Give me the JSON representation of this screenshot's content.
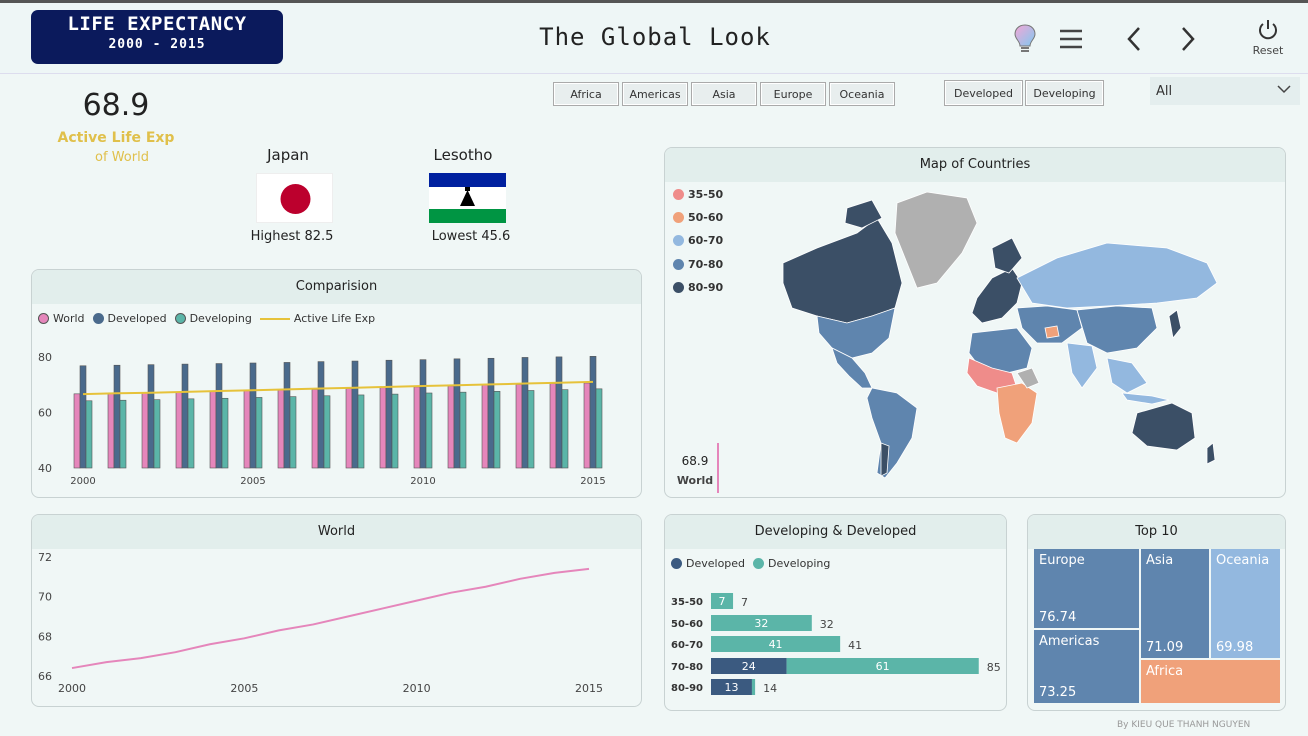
{
  "header": {
    "brand_title": "LIFE EXPECTANCY",
    "brand_years": "2000 - 2015",
    "page_title": "The Global Look",
    "reset_label": "Reset"
  },
  "filters": {
    "regions": [
      "Africa",
      "Americas",
      "Asia",
      "Europe",
      "Oceania"
    ],
    "status": [
      "Developed",
      "Developing"
    ],
    "dropdown_value": "All"
  },
  "kpi": {
    "value": "68.9",
    "label": "Active Life Exp",
    "sub": "of World"
  },
  "highest": {
    "country": "Japan",
    "stat": "Highest 82.5"
  },
  "lowest": {
    "country": "Lesotho",
    "stat": "Lowest 45.6"
  },
  "colors": {
    "world": "#e586bb",
    "developed": "#4a6a8c",
    "developing": "#5bb5a8",
    "active": "#e6c23a",
    "map_35_50": "#ef8c8a",
    "map_50_60": "#f0a17a",
    "map_60_70": "#93b8df",
    "map_70_80": "#5f85ae",
    "map_80_90": "#3b4f66"
  },
  "comparison": {
    "title": "Comparision",
    "legend": [
      "World",
      "Developed",
      "Developing",
      "Active Life Exp"
    ]
  },
  "world_panel": {
    "title": "World"
  },
  "map": {
    "title": "Map of Countries",
    "legend": [
      "35-50",
      "50-60",
      "60-70",
      "70-80",
      "80-90"
    ],
    "stat_value": "68.9",
    "stat_label": "World"
  },
  "devdev": {
    "title": "Developing & Developed",
    "legend": [
      "Developed",
      "Developing"
    ]
  },
  "top10": {
    "title": "Top 10",
    "cells": [
      {
        "name": "Europe",
        "value": "76.74"
      },
      {
        "name": "Americas",
        "value": "73.25"
      },
      {
        "name": "Asia",
        "value": "71.09"
      },
      {
        "name": "Oceania",
        "value": "69.98"
      },
      {
        "name": "Africa",
        "value": ""
      }
    ]
  },
  "credit": "By KIEU QUE THANH NGUYEN",
  "chart_data": [
    {
      "type": "bar",
      "title": "Comparision",
      "categories": [
        2000,
        2001,
        2002,
        2003,
        2004,
        2005,
        2006,
        2007,
        2008,
        2009,
        2010,
        2011,
        2012,
        2013,
        2014,
        2015
      ],
      "x_tick_labels": [
        "2000",
        "2005",
        "2010",
        "2015"
      ],
      "ylim": [
        40,
        85
      ],
      "y_ticks": [
        40,
        60,
        80
      ],
      "series": [
        {
          "name": "World",
          "kind": "bar",
          "values": [
            66.7,
            66.9,
            67.1,
            67.3,
            67.5,
            67.8,
            68.0,
            68.3,
            68.6,
            68.9,
            69.2,
            69.5,
            69.8,
            70.1,
            70.4,
            70.6
          ]
        },
        {
          "name": "Developed",
          "kind": "bar",
          "values": [
            76.8,
            77.0,
            77.2,
            77.4,
            77.6,
            77.8,
            78.0,
            78.3,
            78.5,
            78.8,
            79.0,
            79.3,
            79.5,
            79.8,
            80.0,
            80.2
          ]
        },
        {
          "name": "Developing",
          "kind": "bar",
          "values": [
            64.2,
            64.4,
            64.6,
            64.9,
            65.1,
            65.4,
            65.7,
            66.0,
            66.3,
            66.6,
            67.0,
            67.3,
            67.6,
            67.9,
            68.2,
            68.5
          ]
        },
        {
          "name": "Active Life Exp",
          "kind": "line",
          "values": [
            66.6,
            66.9,
            67.1,
            67.4,
            67.7,
            68.0,
            68.3,
            68.6,
            68.9,
            69.2,
            69.5,
            69.8,
            70.1,
            70.4,
            70.7,
            71.0
          ]
        }
      ]
    },
    {
      "type": "line",
      "title": "World",
      "x": [
        2000,
        2001,
        2002,
        2003,
        2004,
        2005,
        2006,
        2007,
        2008,
        2009,
        2010,
        2011,
        2012,
        2013,
        2014,
        2015
      ],
      "x_tick_labels": [
        "2000",
        "2005",
        "2010",
        "2015"
      ],
      "ylim": [
        66,
        72
      ],
      "y_ticks": [
        66,
        68,
        70,
        72
      ],
      "series": [
        {
          "name": "World",
          "values": [
            66.4,
            66.7,
            66.9,
            67.2,
            67.6,
            67.9,
            68.3,
            68.6,
            69.0,
            69.4,
            69.8,
            70.2,
            70.5,
            70.9,
            71.2,
            71.4
          ]
        }
      ]
    },
    {
      "type": "bar",
      "orientation": "horizontal",
      "stacked": true,
      "title": "Developing & Developed",
      "categories": [
        "35-50",
        "50-60",
        "60-70",
        "70-80",
        "80-90"
      ],
      "series": [
        {
          "name": "Developed",
          "values": [
            0,
            0,
            0,
            24,
            13
          ]
        },
        {
          "name": "Developing",
          "values": [
            7,
            32,
            41,
            61,
            1
          ]
        }
      ],
      "totals": [
        "7",
        "32",
        "41",
        "85",
        "14"
      ]
    }
  ]
}
